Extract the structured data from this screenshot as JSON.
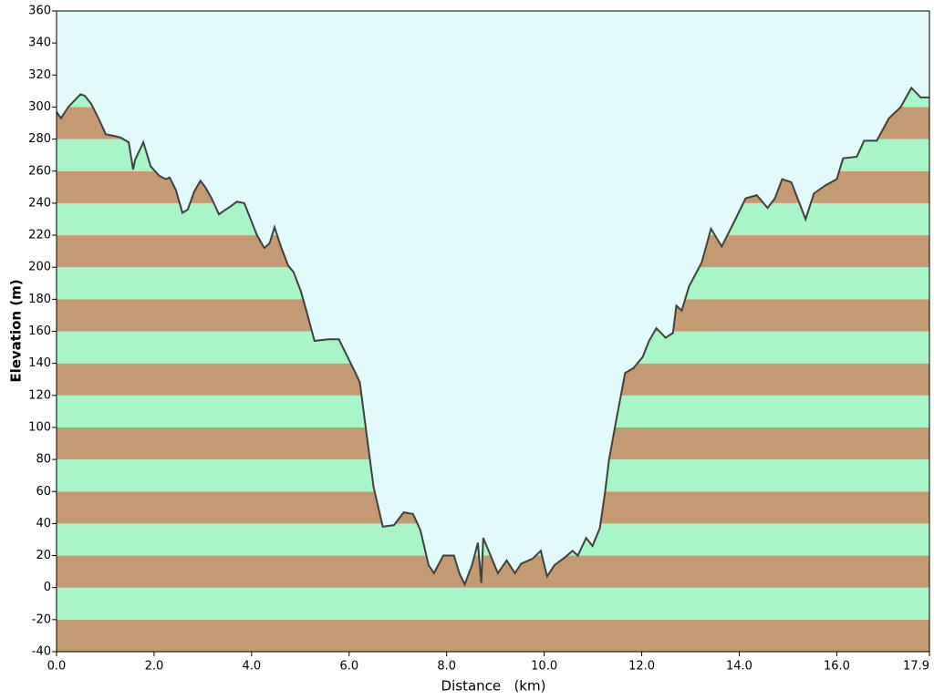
{
  "chart_data": {
    "type": "area",
    "xlabel": "Distance   (km)",
    "ylabel": "Elevation (m)",
    "x": [
      0,
      0.09,
      0.24,
      0.49,
      0.58,
      0.71,
      0.86,
      1.01,
      1.18,
      1.31,
      1.48,
      1.57,
      1.61,
      1.78,
      1.93,
      2.11,
      2.24,
      2.32,
      2.45,
      2.58,
      2.69,
      2.82,
      2.95,
      3.05,
      3.18,
      3.33,
      3.42,
      3.57,
      3.7,
      3.85,
      3.98,
      4.11,
      4.26,
      4.37,
      4.47,
      4.6,
      4.75,
      4.86,
      5.01,
      5.14,
      5.29,
      5.57,
      5.79,
      6.0,
      6.13,
      6.22,
      6.34,
      6.5,
      6.69,
      6.92,
      7.12,
      7.31,
      7.46,
      7.63,
      7.74,
      7.93,
      8.15,
      8.26,
      8.37,
      8.52,
      8.64,
      8.71,
      8.75,
      8.86,
      9.05,
      9.23,
      9.4,
      9.53,
      9.76,
      9.93,
      10.06,
      10.21,
      10.43,
      10.58,
      10.69,
      10.86,
      10.99,
      11.14,
      11.25,
      11.33,
      11.48,
      11.66,
      11.83,
      12.02,
      12.15,
      12.3,
      12.49,
      12.64,
      12.71,
      12.82,
      12.97,
      13.23,
      13.42,
      13.64,
      13.89,
      14.13,
      14.36,
      14.58,
      14.73,
      14.88,
      15.07,
      15.36,
      15.53,
      15.76,
      16.0,
      16.13,
      16.41,
      16.56,
      16.82,
      17.07,
      17.31,
      17.53,
      17.72,
      17.9
    ],
    "values": [
      297,
      293,
      300,
      308,
      307,
      302,
      293,
      283,
      282,
      281,
      278,
      261,
      267,
      278,
      263,
      257,
      255,
      256,
      248,
      234,
      236,
      247,
      254,
      250,
      243,
      233,
      235,
      238,
      241,
      240,
      230,
      220,
      212,
      215,
      225,
      213,
      201,
      197,
      185,
      171,
      154,
      155,
      155,
      142,
      134,
      128,
      100,
      63,
      38,
      39,
      47,
      46,
      36,
      14,
      9,
      20,
      20,
      9,
      2,
      14,
      28,
      3,
      31,
      23,
      9,
      17,
      9,
      15,
      18,
      23,
      7,
      14,
      19,
      23,
      20,
      31,
      26,
      37,
      60,
      80,
      105,
      134,
      137,
      144,
      154,
      162,
      156,
      159,
      176,
      173,
      188,
      203,
      224,
      213,
      228,
      243,
      245,
      237,
      243,
      255,
      253,
      230,
      246,
      251,
      255,
      268,
      269,
      279,
      279,
      293,
      300,
      312,
      306,
      306
    ],
    "color": "#404040",
    "background": "#e2fafa",
    "band_colors": [
      "#c49a72",
      "#a8f5c8"
    ],
    "xlim": [
      0,
      17.9
    ],
    "xticks": [
      {
        "value": 0,
        "label": "0.0"
      },
      {
        "value": 2,
        "label": "2.0"
      },
      {
        "value": 4,
        "label": "4.0"
      },
      {
        "value": 6,
        "label": "6.0"
      },
      {
        "value": 8,
        "label": "8.0"
      },
      {
        "value": 10,
        "label": "10.0"
      },
      {
        "value": 12,
        "label": "12.0"
      },
      {
        "value": 14,
        "label": "14.0"
      },
      {
        "value": 16,
        "label": "16.0"
      },
      17.9
    ],
    "ylim": [
      -40,
      360
    ],
    "yticks": [
      -40,
      -20,
      0,
      20,
      40,
      60,
      80,
      100,
      120,
      140,
      160,
      180,
      200,
      220,
      240,
      260,
      280,
      300,
      320,
      340,
      360
    ]
  }
}
